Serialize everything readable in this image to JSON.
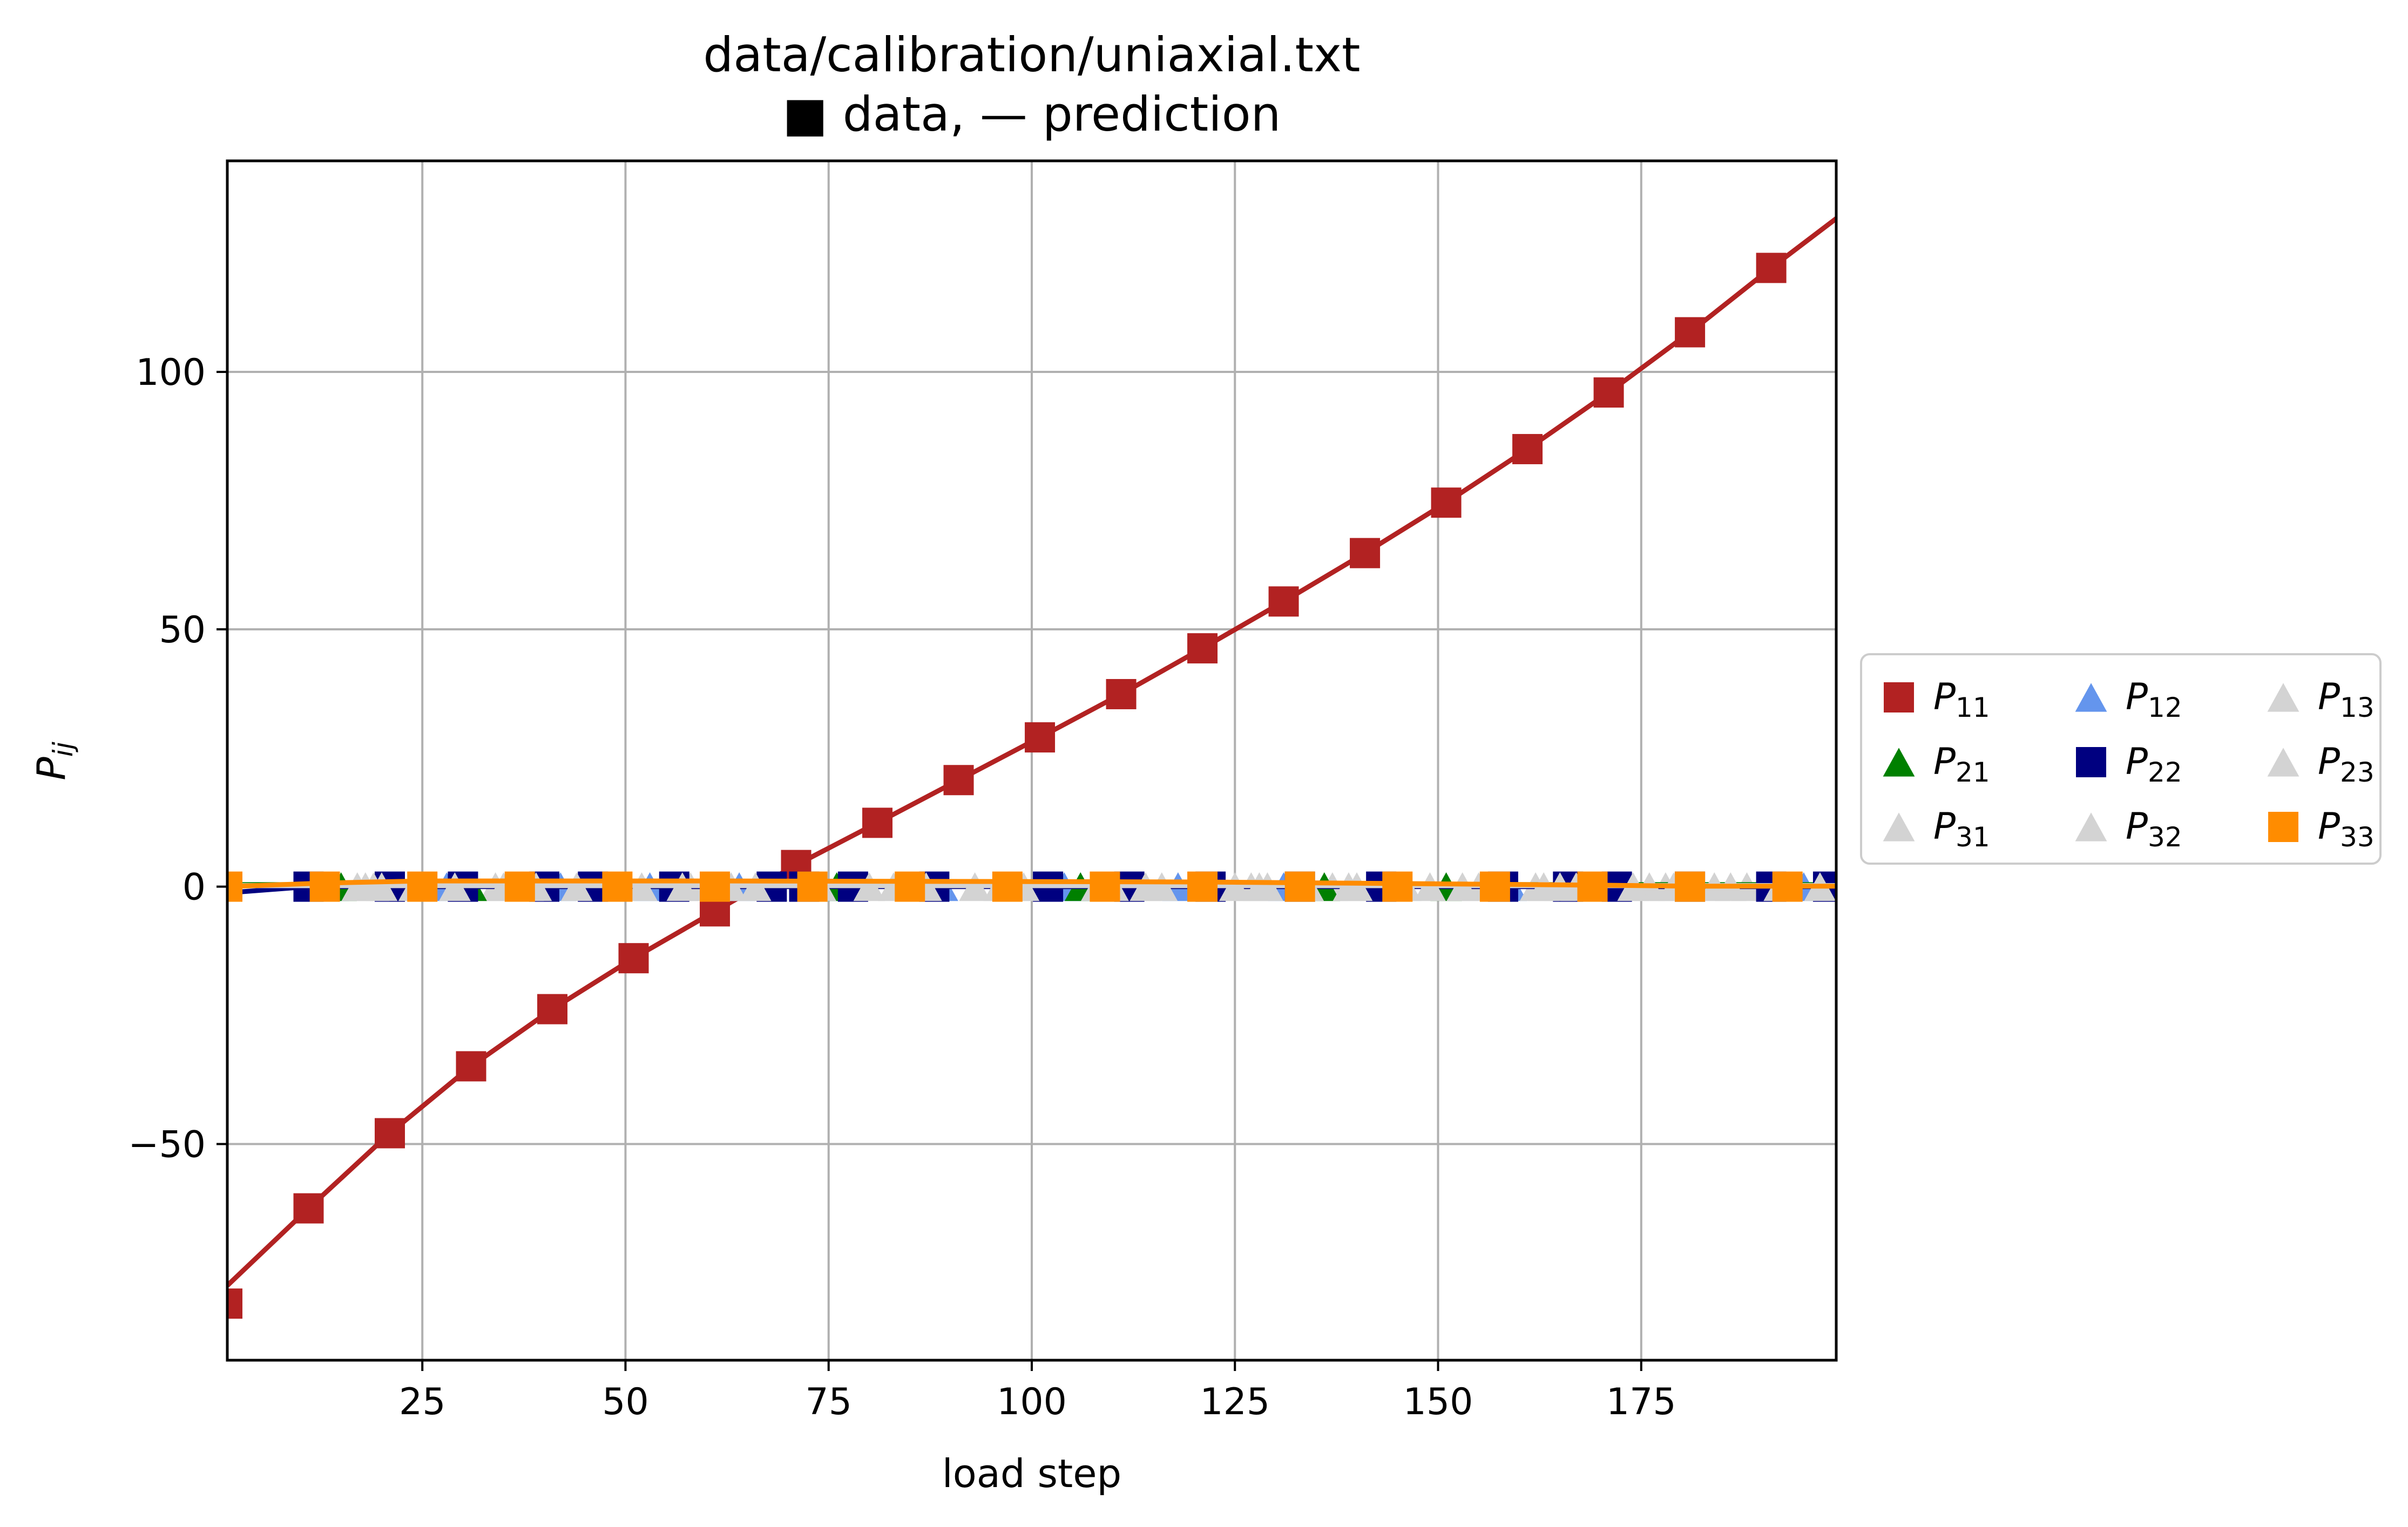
{
  "chart_data": {
    "type": "line",
    "title_line1": "data/calibration/uniaxial.txt",
    "title_line2": "■ data, — prediction",
    "xlabel": "load step",
    "ylabel": "P_ij",
    "ylabel_main": "P",
    "ylabel_sub": "ij",
    "xlim": [
      1,
      199
    ],
    "ylim": [
      -92,
      141
    ],
    "xticks": [
      25,
      50,
      75,
      100,
      125,
      150,
      175
    ],
    "yticks": [
      -50,
      0,
      50,
      100
    ],
    "ytick_labels": [
      "−50",
      "0",
      "50",
      "100"
    ],
    "grid": true,
    "legend_position": "center-left outside right",
    "legend_columns": 3,
    "series": [
      {
        "name": "P_11",
        "label_main": "P",
        "label_sub": "11",
        "color": "#b22222",
        "marker": "square",
        "marker_x": [
          1,
          11,
          21,
          31,
          41,
          51,
          61,
          71,
          81,
          91,
          101,
          111,
          121,
          131,
          141,
          151,
          161,
          171,
          181,
          191
        ],
        "marker_y": [
          -81,
          -62.5,
          -47.9,
          -34.9,
          -23.8,
          -13.9,
          -4.8,
          4.2,
          12.4,
          20.7,
          29,
          37.4,
          46.3,
          55.4,
          64.8,
          74.6,
          85,
          96,
          107.7,
          120.2
        ],
        "line_x": [
          1,
          11,
          21,
          31,
          41,
          51,
          61,
          71,
          81,
          91,
          101,
          111,
          121,
          131,
          141,
          151,
          161,
          171,
          181,
          191,
          199
        ],
        "line_y": [
          -77.5,
          -62.5,
          -47.9,
          -34.9,
          -23.8,
          -13.9,
          -4.8,
          4.2,
          12.4,
          20.7,
          29,
          37.4,
          46.3,
          55.4,
          64.8,
          74.6,
          85,
          96,
          107.7,
          120.2,
          129.8
        ]
      },
      {
        "name": "P_12",
        "label_main": "P",
        "label_sub": "12",
        "color": "#6495ed",
        "marker": "triangle",
        "marker_x": [
          14,
          28,
          42,
          53,
          64,
          77,
          89,
          104,
          106,
          118,
          131,
          145,
          159,
          171,
          195
        ],
        "marker_y": [
          0,
          0,
          0,
          0,
          0,
          0,
          0,
          0,
          0,
          0,
          0,
          0,
          0,
          0,
          0
        ],
        "line_x": [
          1,
          199
        ],
        "line_y": [
          0.3,
          0.3
        ]
      },
      {
        "name": "P_13",
        "label_main": "P",
        "label_sub": "13",
        "color": "#d3d3d3",
        "marker": "triangle",
        "marker_x": [
          18,
          34,
          48,
          58,
          68,
          85,
          98,
          112,
          127,
          137,
          155,
          162,
          178,
          188
        ],
        "marker_y": [
          0,
          0,
          0,
          0,
          0,
          0,
          0,
          0,
          0,
          0,
          0,
          0,
          0,
          0
        ],
        "line_x": [
          1,
          199
        ],
        "line_y": [
          0.2,
          0.2
        ]
      },
      {
        "name": "P_21",
        "label_main": "P",
        "label_sub": "21",
        "color": "#008000",
        "marker": "triangle",
        "marker_x": [
          15,
          31,
          76,
          106,
          136,
          151
        ],
        "marker_y": [
          0,
          0,
          0,
          0,
          0,
          0
        ],
        "line_x": [
          1,
          199
        ],
        "line_y": [
          0.4,
          0.4
        ]
      },
      {
        "name": "P_22",
        "label_main": "P",
        "label_sub": "22",
        "color": "#000080",
        "marker": "square",
        "marker_x": [
          11,
          21,
          30,
          40,
          46,
          56,
          68,
          72,
          78,
          88,
          102,
          112,
          122,
          133,
          143,
          158,
          166,
          172,
          181,
          191,
          198
        ],
        "marker_y": [
          0,
          0,
          0,
          0,
          0,
          0,
          0,
          0,
          0,
          0,
          0,
          0,
          0,
          0,
          0,
          0,
          0,
          0,
          0,
          0,
          0
        ],
        "line_x": [
          1,
          11,
          199
        ],
        "line_y": [
          -1.2,
          0,
          0
        ]
      },
      {
        "name": "P_23",
        "label_main": "P",
        "label_sub": "23",
        "color": "#d3d3d3",
        "marker": "triangle",
        "marker_x": [
          20,
          35,
          44,
          52,
          63,
          80,
          93,
          108,
          116,
          128,
          140,
          153,
          165,
          176,
          186
        ],
        "marker_y": [
          0,
          0,
          0,
          0,
          0,
          0,
          0,
          0,
          0,
          0,
          0,
          0,
          0,
          0,
          0
        ],
        "line_x": [
          1,
          199
        ],
        "line_y": [
          0.2,
          0.2
        ]
      },
      {
        "name": "P_31",
        "label_main": "P",
        "label_sub": "31",
        "color": "#d3d3d3",
        "marker": "triangle",
        "marker_x": [
          17,
          24,
          38,
          57,
          66,
          83,
          96,
          110,
          125,
          134,
          146,
          163,
          174,
          184,
          197
        ],
        "marker_y": [
          0,
          0,
          0,
          0,
          0,
          0,
          0,
          0,
          0,
          0,
          0,
          0,
          0,
          0,
          0
        ],
        "line_x": [
          1,
          199
        ],
        "line_y": [
          0.2,
          0.2
        ]
      },
      {
        "name": "P_32",
        "label_main": "P",
        "label_sub": "32",
        "color": "#d3d3d3",
        "marker": "triangle",
        "marker_x": [
          19,
          29,
          39,
          61,
          74,
          87,
          99,
          114,
          129,
          139,
          149,
          167,
          179,
          192
        ],
        "marker_y": [
          0,
          0,
          0,
          0,
          0,
          0,
          0,
          0,
          0,
          0,
          0,
          0,
          0,
          0
        ],
        "line_x": [
          1,
          199
        ],
        "line_y": [
          0.2,
          0.2
        ]
      },
      {
        "name": "P_33",
        "label_main": "P",
        "label_sub": "33",
        "color": "#ff8c00",
        "marker": "square",
        "marker_x": [
          1,
          13,
          25,
          37,
          49,
          61,
          73,
          85,
          97,
          109,
          121,
          133,
          145,
          157,
          169,
          181,
          193
        ],
        "marker_y": [
          0,
          0,
          0,
          0,
          0,
          0,
          0,
          0,
          0,
          0,
          0,
          0,
          0,
          0,
          0,
          0,
          0
        ],
        "line_x": [
          1,
          13,
          25,
          61,
          97,
          121,
          145,
          169,
          181,
          199
        ],
        "line_y": [
          0,
          0.7,
          1.1,
          1.1,
          1.0,
          0.9,
          0.6,
          0.3,
          0.1,
          0.1
        ]
      }
    ],
    "legend_order": [
      "P_11",
      "P_12",
      "P_13",
      "P_21",
      "P_22",
      "P_23",
      "P_31",
      "P_32",
      "P_33"
    ]
  }
}
